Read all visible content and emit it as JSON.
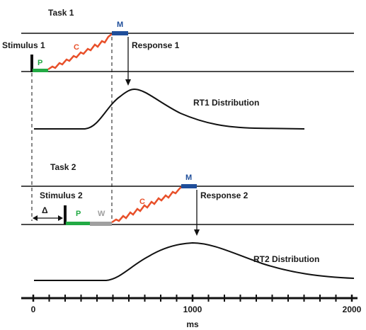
{
  "task1": {
    "title": "Task 1",
    "stimulus": "Stimulus 1",
    "perception": "P",
    "central": "C",
    "motor": "M",
    "response": "Response 1",
    "distribution": "RT1 Distribution"
  },
  "task2": {
    "title": "Task 2",
    "stimulus": "Stimulus 2",
    "perception": "P",
    "wait": "W",
    "central": "C",
    "motor": "M",
    "response": "Response 2",
    "distribution": "RT2 Distribution"
  },
  "soa_symbol": "Δ",
  "axis": {
    "ticks": [
      "0",
      "1000",
      "2000"
    ],
    "label": "ms"
  },
  "colors": {
    "perception": "#22aa44",
    "wait": "#a0a0a0",
    "central": "#e8502a",
    "motor": "#1f4e9a",
    "line": "#111111"
  }
}
